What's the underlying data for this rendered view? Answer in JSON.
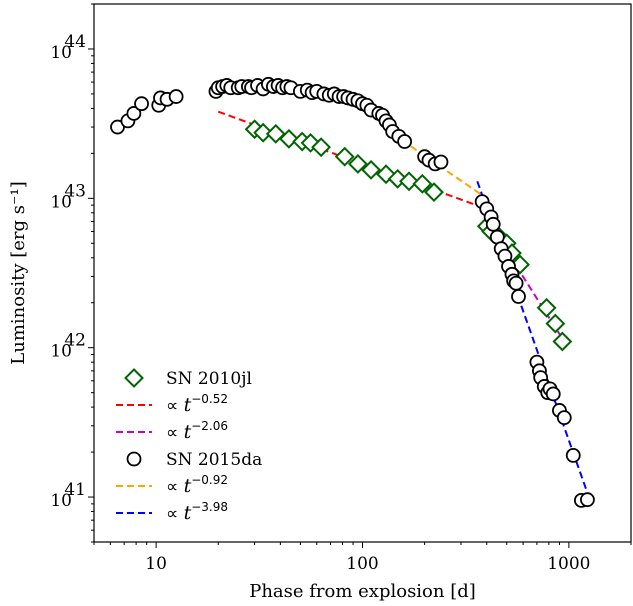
{
  "chart_data": {
    "type": "scatter",
    "xscale": "log",
    "yscale": "log",
    "xlim": [
      5,
      2000
    ],
    "ylim": [
      5e+40,
      2e+44
    ],
    "xlabel": "Phase from explosion [d]",
    "ylabel": "Luminosity [erg s⁻¹]",
    "x_ticks": [
      {
        "value": 10,
        "label": "10"
      },
      {
        "value": 100,
        "label": "100"
      },
      {
        "value": 1000,
        "label": "1000"
      }
    ],
    "y_ticks": [
      {
        "value": 1e+41,
        "base": "10",
        "exp": "41"
      },
      {
        "value": 1e+42,
        "base": "10",
        "exp": "42"
      },
      {
        "value": 1e+43,
        "base": "10",
        "exp": "43"
      },
      {
        "value": 1e+44,
        "base": "10",
        "exp": "44"
      }
    ],
    "grid": false,
    "legend_position": "bottom-left",
    "series": [
      {
        "name": "SN 2010jl",
        "marker": "diamond",
        "color": "#006400",
        "x": [
          30,
          33,
          38,
          44,
          51,
          56,
          63,
          82,
          95,
          110,
          130,
          148,
          168,
          195,
          222,
          400,
          420,
          460,
          500,
          530,
          580,
          780,
          860,
          930
        ],
        "y": [
          2.9e+43,
          2.75e+43,
          2.7e+43,
          2.5e+43,
          2.4e+43,
          2.35e+43,
          2.2e+43,
          1.9e+43,
          1.7e+43,
          1.55e+43,
          1.45e+43,
          1.35e+43,
          1.3e+43,
          1.25e+43,
          1.1e+43,
          6.5e+42,
          6e+42,
          5.5e+42,
          5e+42,
          4.3e+42,
          3.6e+42,
          1.85e+42,
          1.45e+42,
          1.1e+42
        ]
      },
      {
        "name": "SN 2015da",
        "marker": "circle",
        "color": "#000000",
        "x": [
          6.5,
          7.3,
          7.8,
          8.5,
          10.3,
          10.5,
          11.3,
          12.5,
          19.5,
          20,
          21,
          22,
          23,
          25,
          26,
          28,
          29,
          31,
          33,
          35,
          37,
          39,
          41,
          43,
          45,
          50,
          54,
          57,
          60,
          65,
          69,
          73,
          77,
          81,
          85,
          90,
          95,
          100,
          105,
          110,
          120,
          125,
          130,
          135,
          140,
          150,
          160,
          200,
          210,
          225,
          240,
          380,
          400,
          420,
          430,
          450,
          470,
          490,
          510,
          530,
          540,
          555,
          570,
          700,
          720,
          730,
          760,
          790,
          810,
          840,
          900,
          950,
          1050,
          1150,
          1230
        ],
        "y": [
          3e+43,
          3.3e+43,
          3.7e+43,
          4.3e+43,
          4.2e+43,
          4.7e+43,
          4.6e+43,
          4.8e+43,
          5.2e+43,
          5.5e+43,
          5.6e+43,
          5.7e+43,
          5.5e+43,
          5.5e+43,
          5.6e+43,
          5.6e+43,
          5.5e+43,
          5.7e+43,
          5.4e+43,
          5.8e+43,
          5.6e+43,
          5.7e+43,
          5.5e+43,
          5.6e+43,
          5.5e+43,
          5.2e+43,
          5.3e+43,
          5.1e+43,
          5.2e+43,
          5e+43,
          4.9e+43,
          5e+43,
          4.8e+43,
          4.8e+43,
          4.7e+43,
          4.6e+43,
          4.5e+43,
          4.3e+43,
          4.2e+43,
          3.9e+43,
          3.7e+43,
          3.6e+43,
          3.3e+43,
          3.1e+43,
          2.8e+43,
          2.6e+43,
          2.4e+43,
          1.9e+43,
          1.8e+43,
          1.7e+43,
          1.75e+43,
          9.5e+42,
          8.5e+42,
          7.5e+42,
          6.7e+42,
          5.5e+42,
          4.6e+42,
          4.1e+42,
          3.5e+42,
          3.1e+42,
          2.8e+42,
          2.7e+42,
          2.2e+42,
          8e+41,
          7e+41,
          6.3e+41,
          5.5e+41,
          5e+41,
          5.3e+41,
          4.9e+41,
          3.8e+41,
          3.4e+41,
          1.9e+41,
          9.5e+40,
          9.6e+40
        ]
      }
    ],
    "fits": [
      {
        "label_prefix": "∝ t",
        "exponent": "−0.52",
        "color": "#ff0000",
        "x": [
          20,
          400
        ],
        "y": [
          3.8e+43,
          8.5e+42
        ]
      },
      {
        "label_prefix": "∝ t",
        "exponent": "−2.06",
        "color": "#cc00cc",
        "x": [
          400,
          950
        ],
        "y": [
          7.2e+42,
          1.1e+42
        ]
      },
      {
        "label_prefix": "∝ t",
        "exponent": "−0.92",
        "color": "#ffa500",
        "x": [
          140,
          380
        ],
        "y": [
          2.7e+43,
          1.05e+43
        ]
      },
      {
        "label_prefix": "∝ t",
        "exponent": "−3.98",
        "color": "#0000ff",
        "x": [
          360,
          1250
        ],
        "y": [
          1.3e+43,
          1e+41
        ]
      }
    ],
    "legend": [
      {
        "kind": "diamond",
        "color": "#006400",
        "text": "SN 2010jl"
      },
      {
        "kind": "line",
        "color": "#ff0000",
        "prefix": "∝ t",
        "exp": "−0.52"
      },
      {
        "kind": "line",
        "color": "#cc00cc",
        "prefix": "∝ t",
        "exp": "−2.06"
      },
      {
        "kind": "circle",
        "color": "#000000",
        "text": "SN 2015da"
      },
      {
        "kind": "line",
        "color": "#ffa500",
        "prefix": "∝ t",
        "exp": "−0.92"
      },
      {
        "kind": "line",
        "color": "#0000ff",
        "prefix": "∝ t",
        "exp": "−3.98"
      }
    ]
  }
}
